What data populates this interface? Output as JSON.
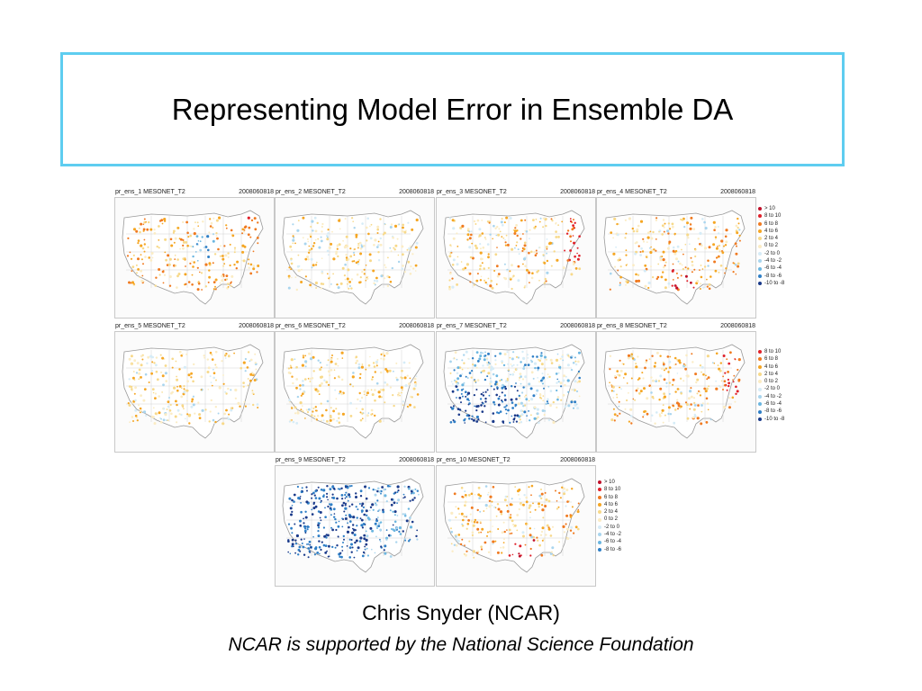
{
  "slide": {
    "title": "Representing Model Error in Ensemble DA",
    "author": "Chris Snyder (NCAR)",
    "support": "NCAR is supported by the National Science Foundation"
  },
  "figure": {
    "panels": [
      {
        "label": "pr_ens_1  MESONET_T2",
        "date": "2008060818",
        "scheme": "mixed-warm-cold"
      },
      {
        "label": "pr_ens_2  MESONET_T2",
        "date": "2008060818",
        "scheme": "warm-light"
      },
      {
        "label": "pr_ens_3  MESONET_T2",
        "date": "2008060818",
        "scheme": "warm"
      },
      {
        "label": "pr_ens_4  MESONET_T2",
        "date": "2008060818",
        "scheme": "warm-south-hot"
      },
      {
        "label": "pr_ens_5  MESONET_T2",
        "date": "2008060818",
        "scheme": "warm-light"
      },
      {
        "label": "pr_ens_6  MESONET_T2",
        "date": "2008060818",
        "scheme": "warm-light"
      },
      {
        "label": "pr_ens_7  MESONET_T2",
        "date": "2008060818",
        "scheme": "cold"
      },
      {
        "label": "pr_ens_8  MESONET_T2",
        "date": "2008060818",
        "scheme": "warm"
      },
      {
        "label": "pr_ens_9  MESONET_T2",
        "date": "2008060818",
        "scheme": "very-cold"
      },
      {
        "label": "pr_ens_10  MESONET_T2",
        "date": "2008060818",
        "scheme": "warm-south-hot"
      }
    ],
    "legend1": [
      {
        "label": "> 10",
        "color": "#c0102a"
      },
      {
        "label": "8 to 10",
        "color": "#e0202a"
      },
      {
        "label": "6 to 8",
        "color": "#f07a20"
      },
      {
        "label": "4 to 6",
        "color": "#f5a623"
      },
      {
        "label": "2 to 4",
        "color": "#f7d98a"
      },
      {
        "label": "0 to 2",
        "color": "#fbecc4"
      },
      {
        "label": "-2 to 0",
        "color": "#d6ecf7"
      },
      {
        "label": "-4 to -2",
        "color": "#a9d5ee"
      },
      {
        "label": "-6 to -4",
        "color": "#6bb6e0"
      },
      {
        "label": "-8 to -6",
        "color": "#2f7fc6"
      },
      {
        "label": "-10 to -8",
        "color": "#1a3a8a"
      }
    ],
    "legend2": [
      {
        "label": "8 to 10",
        "color": "#e0202a"
      },
      {
        "label": "6 to 8",
        "color": "#f07a20"
      },
      {
        "label": "4 to 6",
        "color": "#f5a623"
      },
      {
        "label": "2 to 4",
        "color": "#f7d98a"
      },
      {
        "label": "0 to 2",
        "color": "#fbecc4"
      },
      {
        "label": "-2 to 0",
        "color": "#d6ecf7"
      },
      {
        "label": "-4 to -2",
        "color": "#a9d5ee"
      },
      {
        "label": "-6 to -4",
        "color": "#6bb6e0"
      },
      {
        "label": "-8 to -6",
        "color": "#2f7fc6"
      },
      {
        "label": "-10 to -8",
        "color": "#1a3a8a"
      }
    ],
    "legend3": [
      {
        "label": "> 10",
        "color": "#c0102a"
      },
      {
        "label": "8 to 10",
        "color": "#e0202a"
      },
      {
        "label": "6 to 8",
        "color": "#f07a20"
      },
      {
        "label": "4 to 6",
        "color": "#f5a623"
      },
      {
        "label": "2 to 4",
        "color": "#f7d98a"
      },
      {
        "label": "0 to 2",
        "color": "#fbecc4"
      },
      {
        "label": "-2 to 0",
        "color": "#d6ecf7"
      },
      {
        "label": "-4 to -2",
        "color": "#a9d5ee"
      },
      {
        "label": "-6 to -4",
        "color": "#6bb6e0"
      },
      {
        "label": "-8 to -6",
        "color": "#2f7fc6"
      }
    ]
  },
  "colors": {
    "title_border": "#5ecdf0"
  }
}
